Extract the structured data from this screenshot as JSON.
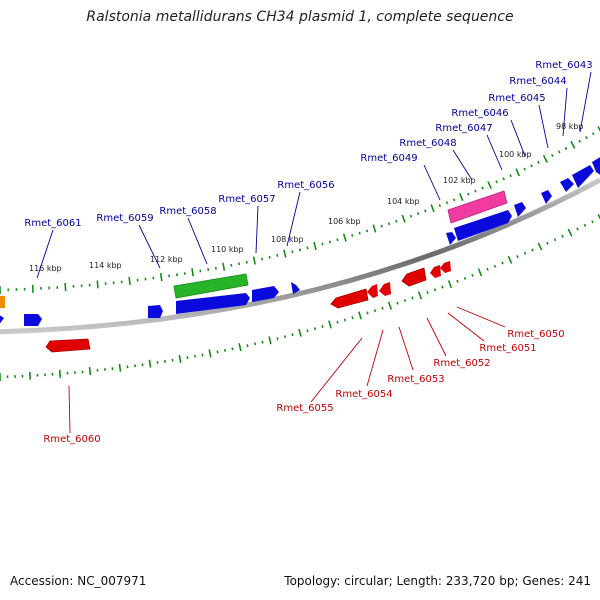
{
  "title": "Ralstonia metallidurans CH34 plasmid 1, complete sequence",
  "footer": {
    "accession": "Accession: NC_007971",
    "summary": "Topology: circular; Length: 233,720 bp; Genes: 241"
  },
  "colors": {
    "forward_gene": "#0a0adc",
    "reverse_gene": "#e00000",
    "rna_green": "#28b428",
    "pink_feature": "#f03ca0",
    "orange_feature": "#f08c00",
    "backbone": "#808080",
    "tick": "#1a8a1a",
    "label_top": "#00009c",
    "label_bottom": "#c00000"
  },
  "kbp_labels": [
    "98 kbp",
    "100 kbp",
    "102 kbp",
    "104 kbp",
    "106 kbp",
    "108 kbp",
    "110 kbp",
    "112 kbp",
    "114 kbp",
    "116 kbp"
  ],
  "top_gene_labels": [
    "Rmet_6043",
    "Rmet_6044",
    "Rmet_6045",
    "Rmet_6046",
    "Rmet_6047",
    "Rmet_6048",
    "Rmet_6049",
    "Rmet_6056",
    "Rmet_6057",
    "Rmet_6058",
    "Rmet_6059",
    "Rmet_6061"
  ],
  "bottom_gene_labels": [
    "Rmet_6050",
    "Rmet_6051",
    "Rmet_6052",
    "Rmet_6053",
    "Rmet_6054",
    "Rmet_6055",
    "Rmet_6060"
  ]
}
